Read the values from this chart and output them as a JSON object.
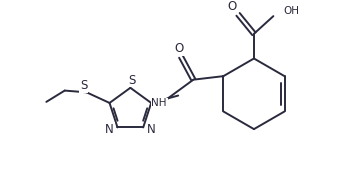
{
  "bg_color": "#ffffff",
  "line_color": "#2a2a3e",
  "line_width": 1.4,
  "font_size": 7.5,
  "figsize": [
    3.49,
    1.87
  ],
  "dpi": 100,
  "xlim": [
    0,
    9.5
  ],
  "ylim": [
    0,
    5.0
  ]
}
